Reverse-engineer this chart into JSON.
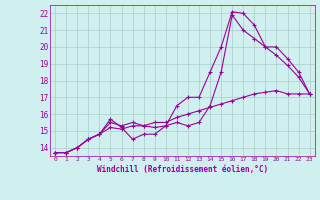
{
  "xlabel": "Windchill (Refroidissement éolien,°C)",
  "line_color": "#990099",
  "bg_color": "#d0f0f0",
  "grid_color": "#aacccc",
  "xlim": [
    -0.5,
    23.5
  ],
  "ylim": [
    13.5,
    22.5
  ],
  "xticks": [
    0,
    1,
    2,
    3,
    4,
    5,
    6,
    7,
    8,
    9,
    10,
    11,
    12,
    13,
    14,
    15,
    16,
    17,
    18,
    19,
    20,
    21,
    22,
    23
  ],
  "yticks": [
    14,
    15,
    16,
    17,
    18,
    19,
    20,
    21,
    22
  ],
  "line1_x": [
    0,
    1,
    2,
    3,
    4,
    5,
    6,
    7,
    8,
    9,
    10,
    11,
    12,
    13,
    14,
    15,
    16,
    17,
    18,
    19,
    20,
    21,
    22,
    23
  ],
  "line1_y": [
    13.7,
    13.7,
    14.0,
    14.5,
    14.8,
    15.7,
    15.2,
    14.5,
    14.8,
    14.8,
    15.3,
    16.5,
    17.0,
    17.0,
    18.5,
    20.0,
    22.1,
    22.0,
    21.3,
    20.0,
    20.0,
    19.3,
    18.5,
    17.2
  ],
  "line2_x": [
    0,
    1,
    2,
    3,
    4,
    5,
    6,
    7,
    8,
    9,
    10,
    11,
    12,
    13,
    14,
    15,
    16,
    17,
    18,
    19,
    20,
    21,
    22,
    23
  ],
  "line2_y": [
    13.7,
    13.7,
    14.0,
    14.5,
    14.8,
    15.5,
    15.3,
    15.5,
    15.3,
    15.2,
    15.3,
    15.5,
    15.3,
    15.5,
    16.5,
    18.5,
    21.9,
    21.0,
    20.5,
    20.0,
    19.5,
    18.9,
    18.2,
    17.2
  ],
  "line3_x": [
    0,
    1,
    2,
    3,
    4,
    5,
    6,
    7,
    8,
    9,
    10,
    11,
    12,
    13,
    14,
    15,
    16,
    17,
    18,
    19,
    20,
    21,
    22,
    23
  ],
  "line3_y": [
    13.7,
    13.7,
    14.0,
    14.5,
    14.8,
    15.2,
    15.1,
    15.3,
    15.3,
    15.5,
    15.5,
    15.8,
    16.0,
    16.2,
    16.4,
    16.6,
    16.8,
    17.0,
    17.2,
    17.3,
    17.4,
    17.2,
    17.2,
    17.2
  ]
}
